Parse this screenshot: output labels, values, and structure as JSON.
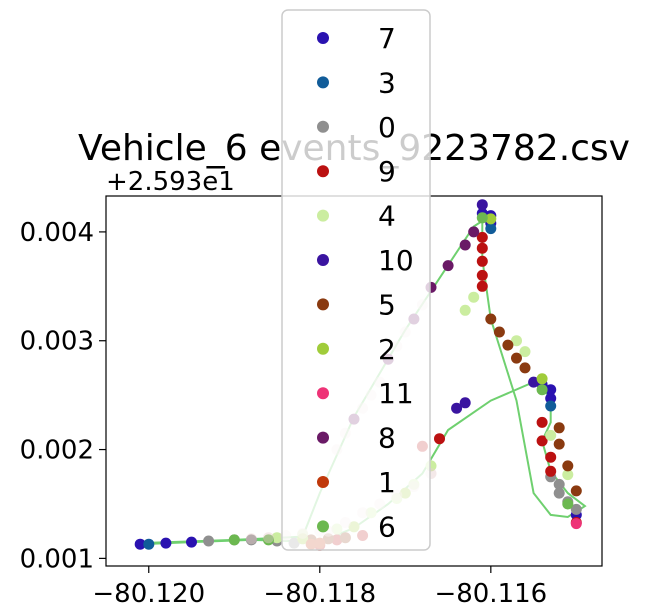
{
  "chart_data": {
    "type": "scatter",
    "title": "Vehicle_6 events_9223782.csv",
    "y_offset_label": "+2.593e1",
    "xlim": [
      -80.1205,
      -80.1147
    ],
    "ylim": [
      0.00093,
      0.00433
    ],
    "xticks": [
      {
        "value": -80.12,
        "label": "−80.120"
      },
      {
        "value": -80.118,
        "label": "−80.118"
      },
      {
        "value": -80.116,
        "label": "−80.116"
      }
    ],
    "yticks": [
      {
        "value": 0.001,
        "label": "0.001"
      },
      {
        "value": 0.002,
        "label": "0.002"
      },
      {
        "value": 0.003,
        "label": "0.003"
      },
      {
        "value": 0.004,
        "label": "0.004"
      }
    ],
    "grid": false,
    "legend_position": "top-center",
    "path_color": "#6fd06f",
    "series": [
      {
        "name": "7",
        "color": "#2a12b0",
        "points": [
          [
            -80.1201,
            0.00113
          ],
          [
            -80.1198,
            0.00114
          ],
          [
            -80.1195,
            0.00115
          ],
          [
            -80.1161,
            0.00417
          ],
          [
            -80.116,
            0.00415
          ],
          [
            -80.116,
            0.00408
          ],
          [
            -80.1154,
            0.0026
          ],
          [
            -80.1153,
            0.00255
          ],
          [
            -80.1153,
            0.00247
          ],
          [
            -80.115,
            0.0014
          ]
        ]
      },
      {
        "name": "3",
        "color": "#115c99",
        "points": [
          [
            -80.12,
            0.00113
          ],
          [
            -80.116,
            0.00403
          ],
          [
            -80.1153,
            0.0024
          ]
        ]
      },
      {
        "name": "0",
        "color": "#8f8f8f",
        "points": [
          [
            -80.1193,
            0.00116
          ],
          [
            -80.119,
            0.00117
          ],
          [
            -80.1188,
            0.00117
          ],
          [
            -80.1185,
            0.00116
          ],
          [
            -80.1183,
            0.00114
          ],
          [
            -80.1153,
            0.00175
          ],
          [
            -80.1152,
            0.00168
          ],
          [
            -80.1152,
            0.0016
          ],
          [
            -80.1151,
            0.00152
          ],
          [
            -80.115,
            0.00145
          ]
        ]
      },
      {
        "name": "9",
        "color": "#bb1111",
        "points": [
          [
            -80.118,
            0.00112
          ],
          [
            -80.1178,
            0.00117
          ],
          [
            -80.1175,
            0.00121
          ],
          [
            -80.1168,
            0.00203
          ],
          [
            -80.1166,
            0.0021
          ],
          [
            -80.1161,
            0.00395
          ],
          [
            -80.1161,
            0.00385
          ],
          [
            -80.1161,
            0.00373
          ],
          [
            -80.1161,
            0.0036
          ],
          [
            -80.1161,
            0.0035
          ],
          [
            -80.1154,
            0.00225
          ],
          [
            -80.1154,
            0.00208
          ],
          [
            -80.1153,
            0.00193
          ],
          [
            -80.1153,
            0.0018
          ],
          [
            -80.115,
            0.00133
          ]
        ]
      },
      {
        "name": "4",
        "color": "#cbeda0",
        "points": [
          [
            -80.1185,
            0.00119
          ],
          [
            -80.1182,
            0.00122
          ],
          [
            -80.1178,
            0.00127
          ],
          [
            -80.1174,
            0.00142
          ],
          [
            -80.1171,
            0.00155
          ],
          [
            -80.1169,
            0.00168
          ],
          [
            -80.1167,
            0.00185
          ],
          [
            -80.1163,
            0.00328
          ],
          [
            -80.1162,
            0.0034
          ],
          [
            -80.1157,
            0.003
          ],
          [
            -80.1156,
            0.0029
          ],
          [
            -80.1153,
            0.00213
          ],
          [
            -80.1151,
            0.00177
          ]
        ]
      },
      {
        "name": "10",
        "color": "#3a14a0",
        "points": [
          [
            -80.1164,
            0.00238
          ],
          [
            -80.1163,
            0.00243
          ],
          [
            -80.1161,
            0.00425
          ],
          [
            -80.1155,
            0.00262
          ]
        ]
      },
      {
        "name": "5",
        "color": "#8a3a10",
        "points": [
          [
            -80.1181,
            0.00117
          ],
          [
            -80.1179,
            0.00118
          ],
          [
            -80.1177,
            0.00119
          ],
          [
            -80.116,
            0.0032
          ],
          [
            -80.1159,
            0.00308
          ],
          [
            -80.1158,
            0.00296
          ],
          [
            -80.1157,
            0.00284
          ],
          [
            -80.1156,
            0.00275
          ],
          [
            -80.1152,
            0.0022
          ],
          [
            -80.1152,
            0.00205
          ],
          [
            -80.1151,
            0.00185
          ],
          [
            -80.115,
            0.00162
          ]
        ]
      },
      {
        "name": "2",
        "color": "#a0cc3a",
        "points": [
          [
            -80.1182,
            0.00118
          ],
          [
            -80.1176,
            0.00129
          ],
          [
            -80.117,
            0.0016
          ],
          [
            -80.116,
            0.00412
          ],
          [
            -80.1154,
            0.00265
          ]
        ]
      },
      {
        "name": "11",
        "color": "#ee3377",
        "points": [
          [
            -80.115,
            0.00132
          ]
        ]
      },
      {
        "name": "8",
        "color": "#6a1a66",
        "points": [
          [
            -80.1176,
            0.00228
          ],
          [
            -80.1172,
            0.00283
          ],
          [
            -80.1169,
            0.0032
          ],
          [
            -80.1167,
            0.00349
          ],
          [
            -80.1165,
            0.00369
          ],
          [
            -80.1163,
            0.00388
          ],
          [
            -80.1162,
            0.004
          ]
        ]
      },
      {
        "name": "1",
        "color": "#c0390a",
        "points": [
          [
            -80.1181,
            0.00113
          ],
          [
            -80.118,
            0.00114
          ]
        ]
      },
      {
        "name": "6",
        "color": "#6cb850",
        "points": [
          [
            -80.119,
            0.00117
          ],
          [
            -80.1186,
            0.00117
          ],
          [
            -80.1161,
            0.00413
          ],
          [
            -80.1154,
            0.00255
          ],
          [
            -80.1151,
            0.0015
          ]
        ]
      }
    ],
    "overlay_points": [
      [
        -80.1179,
        0.00125
      ],
      [
        -80.1177,
        0.00133
      ],
      [
        -80.1175,
        0.00142
      ],
      [
        -80.1173,
        0.0015
      ],
      [
        -80.1171,
        0.00158
      ],
      [
        -80.1169,
        0.00166
      ],
      [
        -80.1167,
        0.00178
      ],
      [
        -80.1178,
        0.002
      ],
      [
        -80.1177,
        0.00215
      ],
      [
        -80.1175,
        0.00238
      ],
      [
        -80.1174,
        0.0025
      ],
      [
        -80.1173,
        0.00262
      ],
      [
        -80.1171,
        0.00295
      ],
      [
        -80.117,
        0.00308
      ],
      [
        -80.1168,
        0.00333
      ],
      [
        -80.118,
        0.00125
      ],
      [
        -80.1182,
        0.00123
      ],
      [
        -80.1184,
        0.00121
      ],
      [
        -80.1186,
        0.00119
      ],
      [
        -80.1188,
        0.00118
      ]
    ],
    "path": [
      [
        -80.1201,
        0.00113
      ],
      [
        -80.1195,
        0.00115
      ],
      [
        -80.1188,
        0.00117
      ],
      [
        -80.1183,
        0.00116
      ],
      [
        -80.118,
        0.00115
      ],
      [
        -80.1176,
        0.00128
      ],
      [
        -80.1172,
        0.0015
      ],
      [
        -80.1168,
        0.00178
      ],
      [
        -80.1165,
        0.00218
      ],
      [
        -80.116,
        0.00245
      ],
      [
        -80.1155,
        0.00262
      ],
      [
        -80.1153,
        0.00248
      ],
      [
        -80.1153,
        0.00225
      ],
      [
        -80.1154,
        0.00208
      ],
      [
        -80.1153,
        0.0018
      ],
      [
        -80.1151,
        0.0016
      ],
      [
        -80.1149,
        0.00148
      ],
      [
        -80.1151,
        0.00138
      ],
      [
        -80.1153,
        0.0014
      ],
      [
        -80.1155,
        0.0016
      ],
      [
        -80.1157,
        0.00245
      ],
      [
        -80.116,
        0.0032
      ],
      [
        -80.1161,
        0.00375
      ],
      [
        -80.1161,
        0.0041
      ],
      [
        -80.1162,
        0.00405
      ],
      [
        -80.117,
        0.0031
      ],
      [
        -80.1176,
        0.0023
      ],
      [
        -80.118,
        0.0016
      ],
      [
        -80.1182,
        0.0012
      ],
      [
        -80.119,
        0.00117
      ],
      [
        -80.1201,
        0.00114
      ]
    ]
  }
}
